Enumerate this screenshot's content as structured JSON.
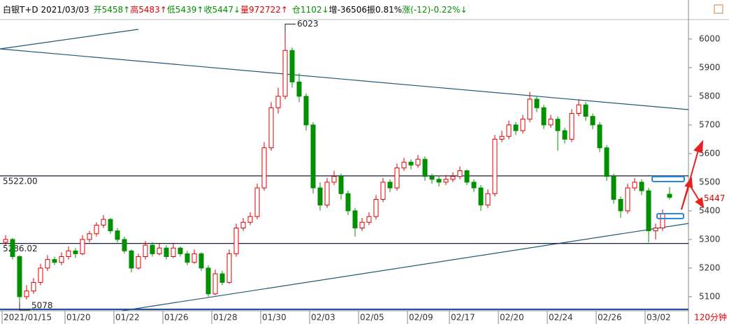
{
  "chart_data": {
    "type": "candlestick",
    "header": [
      {
        "text": "白银T+D 2021/03/03",
        "color": "#000000"
      },
      {
        "text": "开5458↑",
        "color": "#009000"
      },
      {
        "text": "高5483↑",
        "color": "#e00000"
      },
      {
        "text": "低5439↑",
        "color": "#009000"
      },
      {
        "text": "收5447↓",
        "color": "#009000"
      },
      {
        "text": "量972722↑",
        "color": "#e00000"
      },
      {
        "text": "仓1102↓",
        "color": "#009000"
      },
      {
        "text": "增-36506",
        "color": "#000000"
      },
      {
        "text": "振0.81%",
        "color": "#000000"
      },
      {
        "text": "涨(-12)-0.22%↓",
        "color": "#009000"
      }
    ],
    "timeframe": "120分钟",
    "up_color": "#e00000",
    "down_color": "#009000",
    "ylim": [
      5051,
      6068
    ],
    "yticks": [
      5100,
      5200,
      5300,
      5400,
      5500,
      5600,
      5700,
      5800,
      5900,
      6000
    ],
    "levels": [
      {
        "value": 5522,
        "label": "5522.00"
      },
      {
        "value": 5286.02,
        "label": "5286.02"
      }
    ],
    "high_mark": 40,
    "low_mark": 2,
    "categories": [
      "2021/01/15",
      null,
      null,
      null,
      null,
      null,
      null,
      null,
      null,
      "01/20",
      null,
      null,
      null,
      null,
      null,
      null,
      "01/22",
      null,
      null,
      null,
      null,
      null,
      null,
      "01/26",
      null,
      null,
      null,
      null,
      null,
      null,
      "01/28",
      null,
      null,
      null,
      null,
      null,
      null,
      "01/30",
      null,
      null,
      null,
      null,
      null,
      null,
      "02/03",
      null,
      null,
      null,
      null,
      null,
      null,
      "02/05",
      null,
      null,
      null,
      null,
      null,
      null,
      "02/09",
      null,
      null,
      null,
      null,
      null,
      "02/17",
      null,
      null,
      null,
      null,
      null,
      null,
      "02/20",
      null,
      null,
      null,
      null,
      null,
      null,
      "02/24",
      null,
      null,
      null,
      null,
      null,
      null,
      "02/26",
      null,
      null,
      null,
      null,
      null,
      null,
      "03/02",
      null,
      null,
      null
    ],
    "candles": [
      [
        5290,
        5315,
        5280,
        5300
      ],
      [
        5300,
        5305,
        5230,
        5240
      ],
      [
        5240,
        5245,
        5078,
        5100
      ],
      [
        5100,
        5140,
        5090,
        5120
      ],
      [
        5120,
        5165,
        5110,
        5150
      ],
      [
        5150,
        5215,
        5140,
        5200
      ],
      [
        5200,
        5245,
        5190,
        5230
      ],
      [
        5230,
        5240,
        5210,
        5220
      ],
      [
        5220,
        5255,
        5210,
        5240
      ],
      [
        5240,
        5275,
        5230,
        5260
      ],
      [
        5260,
        5270,
        5235,
        5250
      ],
      [
        5250,
        5315,
        5245,
        5300
      ],
      [
        5300,
        5330,
        5290,
        5320
      ],
      [
        5320,
        5360,
        5310,
        5350
      ],
      [
        5350,
        5385,
        5340,
        5370
      ],
      [
        5370,
        5375,
        5320,
        5330
      ],
      [
        5330,
        5340,
        5290,
        5300
      ],
      [
        5300,
        5310,
        5250,
        5260
      ],
      [
        5260,
        5265,
        5185,
        5200
      ],
      [
        5200,
        5250,
        5195,
        5240
      ],
      [
        5240,
        5295,
        5230,
        5280
      ],
      [
        5280,
        5290,
        5240,
        5250
      ],
      [
        5250,
        5285,
        5245,
        5270
      ],
      [
        5270,
        5280,
        5230,
        5240
      ],
      [
        5240,
        5285,
        5235,
        5270
      ],
      [
        5270,
        5275,
        5240,
        5250
      ],
      [
        5250,
        5260,
        5210,
        5220
      ],
      [
        5220,
        5265,
        5215,
        5250
      ],
      [
        5250,
        5255,
        5190,
        5200
      ],
      [
        5200,
        5210,
        5100,
        5110
      ],
      [
        5110,
        5195,
        5105,
        5180
      ],
      [
        5180,
        5190,
        5140,
        5150
      ],
      [
        5150,
        5265,
        5145,
        5250
      ],
      [
        5250,
        5355,
        5240,
        5340
      ],
      [
        5340,
        5375,
        5330,
        5360
      ],
      [
        5360,
        5395,
        5350,
        5380
      ],
      [
        5380,
        5495,
        5370,
        5480
      ],
      [
        5480,
        5640,
        5470,
        5620
      ],
      [
        5620,
        5780,
        5610,
        5760
      ],
      [
        5760,
        5830,
        5740,
        5800
      ],
      [
        5800,
        6023,
        5790,
        5960
      ],
      [
        5960,
        5970,
        5830,
        5850
      ],
      [
        5850,
        5880,
        5780,
        5800
      ],
      [
        5800,
        5810,
        5680,
        5700
      ],
      [
        5700,
        5710,
        5460,
        5480
      ],
      [
        5480,
        5500,
        5400,
        5420
      ],
      [
        5420,
        5515,
        5410,
        5500
      ],
      [
        5500,
        5540,
        5490,
        5520
      ],
      [
        5520,
        5530,
        5440,
        5460
      ],
      [
        5460,
        5470,
        5385,
        5400
      ],
      [
        5400,
        5410,
        5310,
        5340
      ],
      [
        5340,
        5375,
        5330,
        5360
      ],
      [
        5360,
        5395,
        5350,
        5380
      ],
      [
        5380,
        5455,
        5370,
        5440
      ],
      [
        5440,
        5515,
        5430,
        5500
      ],
      [
        5500,
        5510,
        5465,
        5480
      ],
      [
        5480,
        5565,
        5470,
        5550
      ],
      [
        5550,
        5585,
        5540,
        5570
      ],
      [
        5570,
        5580,
        5545,
        5560
      ],
      [
        5560,
        5595,
        5550,
        5580
      ],
      [
        5580,
        5590,
        5505,
        5520
      ],
      [
        5520,
        5530,
        5495,
        5510
      ],
      [
        5510,
        5520,
        5485,
        5500
      ],
      [
        5500,
        5525,
        5490,
        5510
      ],
      [
        5510,
        5535,
        5500,
        5520
      ],
      [
        5520,
        5555,
        5510,
        5540
      ],
      [
        5540,
        5545,
        5490,
        5500
      ],
      [
        5500,
        5510,
        5465,
        5480
      ],
      [
        5480,
        5490,
        5400,
        5420
      ],
      [
        5420,
        5475,
        5410,
        5460
      ],
      [
        5460,
        5665,
        5450,
        5650
      ],
      [
        5650,
        5680,
        5640,
        5660
      ],
      [
        5660,
        5715,
        5650,
        5700
      ],
      [
        5700,
        5710,
        5665,
        5680
      ],
      [
        5680,
        5735,
        5670,
        5720
      ],
      [
        5720,
        5815,
        5710,
        5790
      ],
      [
        5790,
        5800,
        5745,
        5760
      ],
      [
        5760,
        5770,
        5685,
        5700
      ],
      [
        5700,
        5735,
        5690,
        5720
      ],
      [
        5720,
        5730,
        5610,
        5680
      ],
      [
        5680,
        5690,
        5635,
        5650
      ],
      [
        5650,
        5755,
        5640,
        5740
      ],
      [
        5740,
        5790,
        5730,
        5770
      ],
      [
        5770,
        5780,
        5715,
        5730
      ],
      [
        5730,
        5740,
        5685,
        5700
      ],
      [
        5700,
        5710,
        5605,
        5620
      ],
      [
        5620,
        5630,
        5505,
        5520
      ],
      [
        5520,
        5530,
        5425,
        5440
      ],
      [
        5440,
        5450,
        5375,
        5400
      ],
      [
        5400,
        5495,
        5390,
        5480
      ],
      [
        5480,
        5515,
        5470,
        5500
      ],
      [
        5500,
        5510,
        5455,
        5470
      ],
      [
        5470,
        5480,
        5290,
        5330
      ],
      [
        5330,
        5355,
        5300,
        5340
      ],
      [
        5340,
        5405,
        5330,
        5390
      ],
      [
        5458,
        5483,
        5439,
        5447
      ]
    ]
  }
}
